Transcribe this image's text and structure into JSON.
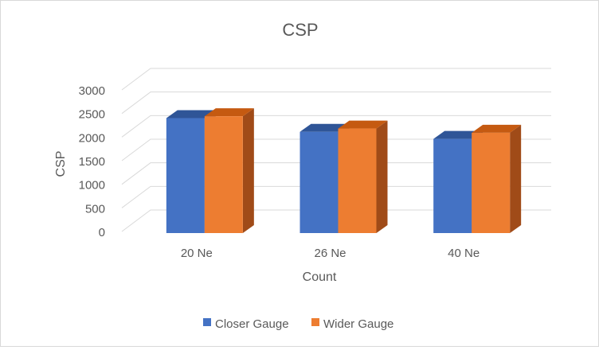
{
  "chart_data": {
    "type": "bar",
    "style": "3d-clustered-column",
    "title": "CSP",
    "xlabel": "Count",
    "ylabel": "CSP",
    "categories": [
      "20 Ne",
      "26 Ne",
      "40 Ne"
    ],
    "ylim": [
      0,
      3000
    ],
    "yticks": [
      0,
      500,
      1000,
      1500,
      2000,
      2500,
      3000
    ],
    "grid": true,
    "legend_position": "bottom",
    "series": [
      {
        "name": "Closer Gauge",
        "values": [
          2570,
          2280,
          2130
        ],
        "color": "#4472C4",
        "top_color": "#2F5597",
        "side_color": "#2E4F8F"
      },
      {
        "name": "Wider Gauge",
        "values": [
          2610,
          2350,
          2260
        ],
        "color": "#ED7D31",
        "top_color": "#C55A11",
        "side_color": "#A04B18"
      }
    ]
  }
}
